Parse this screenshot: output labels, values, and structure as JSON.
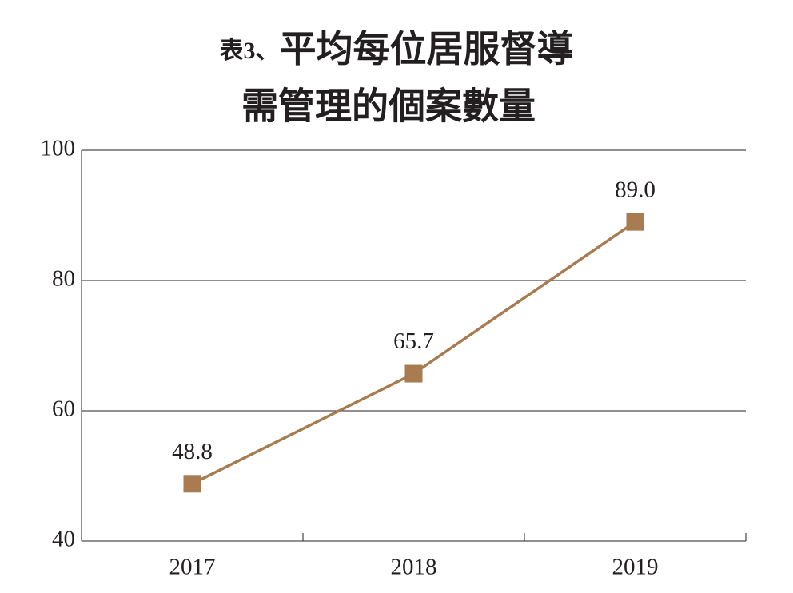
{
  "chart_data": {
    "type": "line",
    "title_label": "表3、",
    "title": [
      "平均每位居服督導",
      "需管理的個案數量"
    ],
    "categories": [
      "2017",
      "2018",
      "2019"
    ],
    "values": [
      48.8,
      65.7,
      89.0
    ],
    "value_labels": [
      "48.8",
      "65.7",
      "89.0"
    ],
    "color": "#a87b50",
    "ylim": [
      40,
      100
    ],
    "yticks": [
      40,
      60,
      80,
      100
    ],
    "grid": true
  }
}
